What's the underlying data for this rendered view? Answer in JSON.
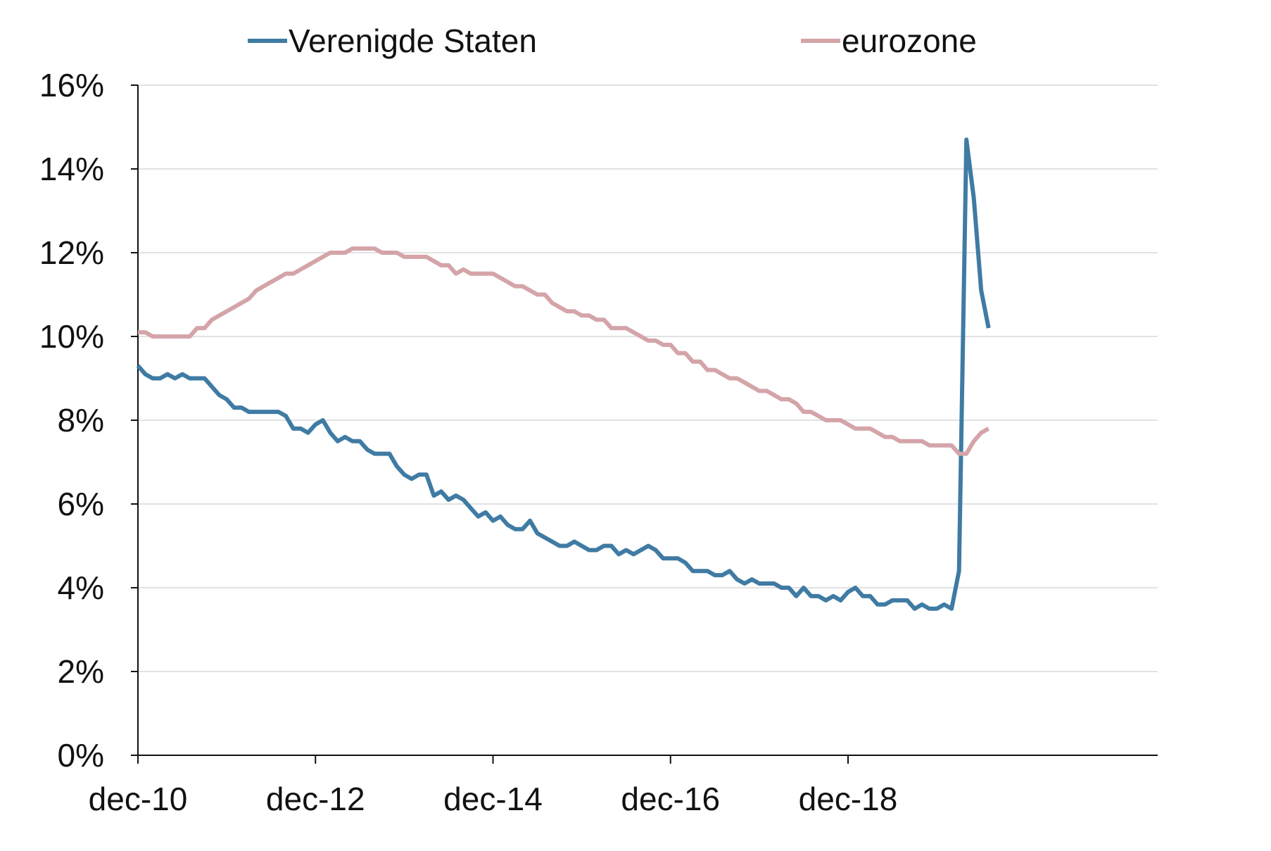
{
  "chart_data": {
    "type": "line",
    "title": "",
    "xlabel": "",
    "ylabel": "",
    "ylim": [
      0,
      16
    ],
    "yticks": [
      "0%",
      "2%",
      "4%",
      "6%",
      "8%",
      "10%",
      "12%",
      "14%",
      "16%"
    ],
    "xticks": [
      "dec-10",
      "dec-12",
      "dec-14",
      "dec-16",
      "dec-18"
    ],
    "x_start": "2010-12",
    "grid": "horizontal",
    "legend_position": "top",
    "series": [
      {
        "name": "Verenigde Staten",
        "color": "#3f7ba3",
        "values": [
          9.3,
          9.1,
          9.0,
          9.0,
          9.1,
          9.0,
          9.1,
          9.0,
          9.0,
          9.0,
          8.8,
          8.6,
          8.5,
          8.3,
          8.3,
          8.2,
          8.2,
          8.2,
          8.2,
          8.2,
          8.1,
          7.8,
          7.8,
          7.7,
          7.9,
          8.0,
          7.7,
          7.5,
          7.6,
          7.5,
          7.5,
          7.3,
          7.2,
          7.2,
          7.2,
          6.9,
          6.7,
          6.6,
          6.7,
          6.7,
          6.2,
          6.3,
          6.1,
          6.2,
          6.1,
          5.9,
          5.7,
          5.8,
          5.6,
          5.7,
          5.5,
          5.4,
          5.4,
          5.6,
          5.3,
          5.2,
          5.1,
          5.0,
          5.0,
          5.1,
          5.0,
          4.9,
          4.9,
          5.0,
          5.0,
          4.8,
          4.9,
          4.8,
          4.9,
          5.0,
          4.9,
          4.7,
          4.7,
          4.7,
          4.6,
          4.4,
          4.4,
          4.4,
          4.3,
          4.3,
          4.4,
          4.2,
          4.1,
          4.2,
          4.1,
          4.1,
          4.1,
          4.0,
          4.0,
          3.8,
          4.0,
          3.8,
          3.8,
          3.7,
          3.8,
          3.7,
          3.9,
          4.0,
          3.8,
          3.8,
          3.6,
          3.6,
          3.7,
          3.7,
          3.7,
          3.5,
          3.6,
          3.5,
          3.5,
          3.6,
          3.5,
          4.4,
          14.7,
          13.3,
          11.1,
          10.2
        ]
      },
      {
        "name": "eurozone",
        "color": "#d4a4a9",
        "values": [
          10.1,
          10.1,
          10.0,
          10.0,
          10.0,
          10.0,
          10.0,
          10.0,
          10.2,
          10.2,
          10.4,
          10.5,
          10.6,
          10.7,
          10.8,
          10.9,
          11.1,
          11.2,
          11.3,
          11.4,
          11.5,
          11.5,
          11.6,
          11.7,
          11.8,
          11.9,
          12.0,
          12.0,
          12.0,
          12.1,
          12.1,
          12.1,
          12.1,
          12.0,
          12.0,
          12.0,
          11.9,
          11.9,
          11.9,
          11.9,
          11.8,
          11.7,
          11.7,
          11.5,
          11.6,
          11.5,
          11.5,
          11.5,
          11.5,
          11.4,
          11.3,
          11.2,
          11.2,
          11.1,
          11.0,
          11.0,
          10.8,
          10.7,
          10.6,
          10.6,
          10.5,
          10.5,
          10.4,
          10.4,
          10.2,
          10.2,
          10.2,
          10.1,
          10.0,
          9.9,
          9.9,
          9.8,
          9.8,
          9.6,
          9.6,
          9.4,
          9.4,
          9.2,
          9.2,
          9.1,
          9.0,
          9.0,
          8.9,
          8.8,
          8.7,
          8.7,
          8.6,
          8.5,
          8.5,
          8.4,
          8.2,
          8.2,
          8.1,
          8.0,
          8.0,
          8.0,
          7.9,
          7.8,
          7.8,
          7.8,
          7.7,
          7.6,
          7.6,
          7.5,
          7.5,
          7.5,
          7.5,
          7.4,
          7.4,
          7.4,
          7.4,
          7.2,
          7.2,
          7.5,
          7.7,
          7.8
        ]
      }
    ]
  }
}
